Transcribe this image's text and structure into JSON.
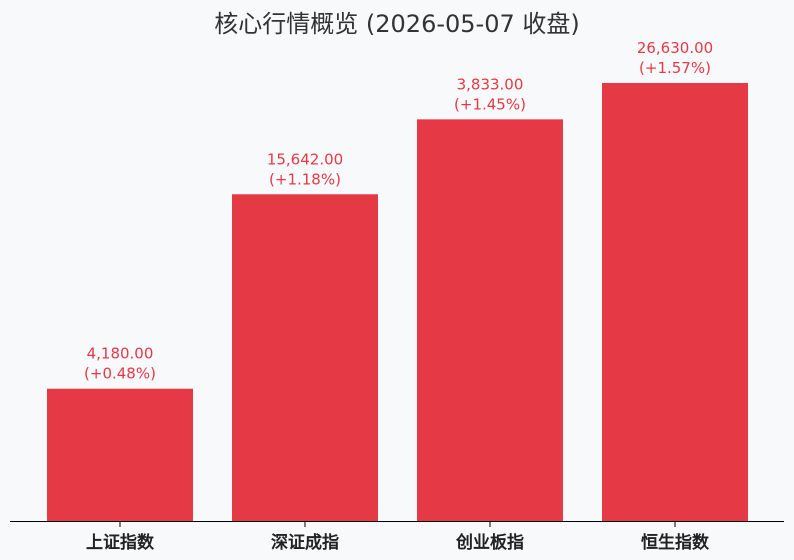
{
  "chart_data": {
    "type": "bar",
    "title": "核心行情概览 (2026-05-07 收盘)",
    "categories": [
      "上证指数",
      "深证成指",
      "创业板指",
      "恒生指数"
    ],
    "values": [
      4180.0,
      15642.0,
      3833.0,
      26630.0
    ],
    "value_labels": [
      "4,180.00",
      "15,642.00",
      "3,833.00",
      "26,630.00"
    ],
    "change_labels": [
      "(+0.48%)",
      "(+1.18%)",
      "(+1.45%)",
      "(+1.57%)"
    ],
    "bar_heights_normalized": [
      0.302,
      0.746,
      0.917,
      1.0
    ],
    "bar_color": "#e63946",
    "label_color": "#e63946",
    "axis_color": "#000000",
    "background_color": "#f7f9fb",
    "grid": false,
    "xlabel": "",
    "ylabel": "",
    "y_axis_visible": false
  }
}
